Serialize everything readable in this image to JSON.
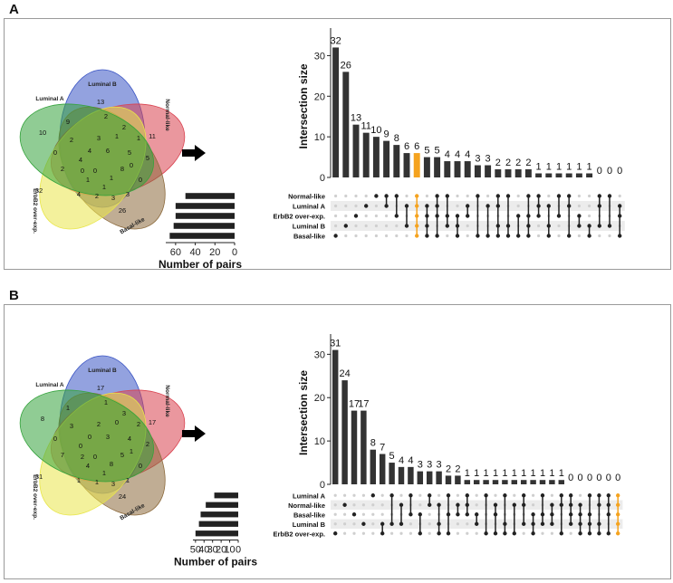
{
  "panels": [
    {
      "label": "A",
      "venn": {
        "sets": [
          "Luminal A",
          "Luminal B",
          "Normal-like",
          "Basal-like",
          "ErbB2 over-exp."
        ],
        "region_labels": [
          "10",
          "13",
          "11",
          "26",
          "32",
          "9",
          "2",
          "4",
          "1",
          "2",
          "2",
          "1",
          "5",
          "0",
          "3",
          "3",
          "2",
          "4",
          "2",
          "0",
          "6",
          "5",
          "8",
          "1",
          "0",
          "4",
          "3",
          "1",
          "0",
          "1",
          "0"
        ]
      },
      "chart_data": {
        "type": "bar",
        "title": "",
        "ylabel": "Intersection size",
        "ylim": [
          0,
          35
        ],
        "yticks": [
          0,
          10,
          20,
          30
        ],
        "values": [
          32,
          26,
          13,
          11,
          10,
          9,
          8,
          6,
          6,
          5,
          5,
          4,
          4,
          4,
          3,
          3,
          2,
          2,
          2,
          2,
          1,
          1,
          1,
          1,
          1,
          1,
          0,
          0,
          0
        ],
        "highlight_index": 8,
        "set_names": [
          "Normal-like",
          "Luminal A",
          "ErbB2 over-exp.",
          "Luminal B",
          "Basal-like"
        ],
        "set_sizes": [
          50,
          60,
          60,
          62,
          66
        ],
        "set_axis_label": "Number of pairs",
        "set_axis_ticks": [
          60,
          40,
          20,
          0
        ],
        "set_axis_max": 70,
        "matrix": [
          [
            4
          ],
          [
            3
          ],
          [
            2
          ],
          [
            1
          ],
          [
            0
          ],
          [
            0,
            1
          ],
          [
            0,
            2
          ],
          [
            1,
            3
          ],
          [
            0,
            1,
            2,
            3,
            4
          ],
          [
            1,
            2,
            3,
            4
          ],
          [
            0,
            1,
            2,
            4
          ],
          [
            0,
            2,
            3
          ],
          [
            2,
            3,
            4
          ],
          [
            1,
            2
          ],
          [
            0,
            4
          ],
          [
            1,
            4
          ],
          [
            0,
            1,
            3,
            4
          ],
          [
            0,
            3,
            4
          ],
          [
            2,
            4
          ],
          [
            0,
            2,
            3,
            4
          ],
          [
            0,
            1,
            2
          ],
          [
            1,
            3,
            4
          ],
          [
            0,
            2
          ],
          [
            0,
            1,
            4
          ],
          [
            2,
            3
          ],
          [
            3,
            4
          ],
          [
            0,
            1,
            3
          ],
          [
            0,
            3
          ],
          [
            1,
            2,
            4
          ]
        ]
      }
    },
    {
      "label": "B",
      "venn": {
        "sets": [
          "Luminal A",
          "Luminal B",
          "Normal-like",
          "Basal-like",
          "ErbB2 over-exp."
        ],
        "region_labels": [
          "8",
          "17",
          "17",
          "24",
          "31",
          "1",
          "3",
          "0",
          "4",
          "1",
          "3",
          "2",
          "2",
          "0",
          "1",
          "3",
          "1",
          "1",
          "7",
          "0",
          "3",
          "4",
          "5",
          "8",
          "0",
          "0",
          "2",
          "0",
          "1",
          "1",
          "2"
        ]
      },
      "chart_data": {
        "type": "bar",
        "title": "",
        "ylabel": "Intersection size",
        "ylim": [
          0,
          33
        ],
        "yticks": [
          0,
          10,
          20,
          30
        ],
        "values": [
          31,
          24,
          17,
          17,
          8,
          7,
          5,
          4,
          4,
          3,
          3,
          3,
          2,
          2,
          1,
          1,
          1,
          1,
          1,
          1,
          1,
          1,
          1,
          1,
          1,
          0,
          0,
          0,
          0,
          0,
          0
        ],
        "highlight_index": 30,
        "set_names": [
          "Luminal A",
          "Normal-like",
          "Basal-like",
          "Luminal B",
          "ErbB2 over-exp."
        ],
        "set_sizes": [
          28,
          38,
          44,
          46,
          50
        ],
        "set_axis_label": "Number of pairs",
        "set_axis_ticks": [
          50,
          40,
          30,
          20,
          10,
          0
        ],
        "set_axis_max": 53,
        "matrix": [
          [
            4
          ],
          [
            1
          ],
          [
            2
          ],
          [
            3
          ],
          [
            0
          ],
          [
            3,
            4
          ],
          [
            0,
            3
          ],
          [
            1,
            3
          ],
          [
            0,
            2
          ],
          [
            2,
            4
          ],
          [
            0,
            1
          ],
          [
            1,
            3,
            4
          ],
          [
            0,
            2,
            4
          ],
          [
            1,
            2
          ],
          [
            0,
            1,
            2
          ],
          [
            2,
            3
          ],
          [
            0,
            4
          ],
          [
            1,
            2,
            4
          ],
          [
            0,
            3,
            4
          ],
          [
            1,
            4
          ],
          [
            0,
            1,
            3
          ],
          [
            2,
            3,
            4
          ],
          [
            0,
            2,
            3
          ],
          [
            1,
            2,
            3
          ],
          [
            0,
            1,
            4
          ],
          [
            0,
            1,
            2,
            3
          ],
          [
            1,
            2,
            3,
            4
          ],
          [
            0,
            2,
            3,
            4
          ],
          [
            0,
            1,
            3,
            4
          ],
          [
            0,
            1,
            2,
            4
          ],
          [
            0,
            1,
            2,
            3,
            4
          ]
        ]
      }
    }
  ]
}
